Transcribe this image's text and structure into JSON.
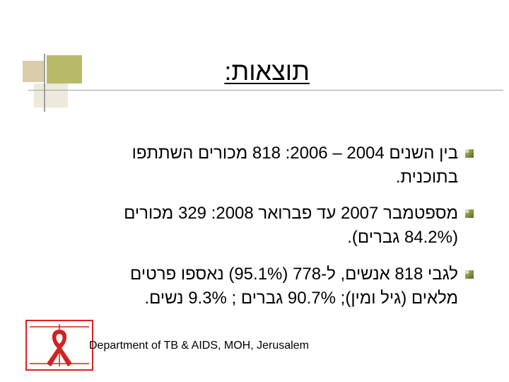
{
  "slide": {
    "title": "תוצאות:",
    "bullets": [
      {
        "line1": "בין השנים 2004 – 2006:  818 מכורים השתתפו",
        "line2": "בתוכנית."
      },
      {
        "line1": "מספטמבר 2007 עד פברואר 2008: 329 מכורים",
        "line2": "(84.2% גברים)."
      },
      {
        "line1": "לגבי 818 אנשים, ל-778 (95.1%) נאספו פרטים",
        "line2": "מלאים (גיל ומין); 90.7% גברים ;  9.3% נשים."
      }
    ],
    "footer": "Department of TB & AIDS, MOH, Jerusalem"
  },
  "colors": {
    "accent_olive": "#b7ba68",
    "accent_tan": "#d8ccaa",
    "ribbon_red": "#d22222"
  },
  "icons": {
    "bullet": "square-bullet-icon",
    "logo": "red-aids-ribbon-logo"
  }
}
